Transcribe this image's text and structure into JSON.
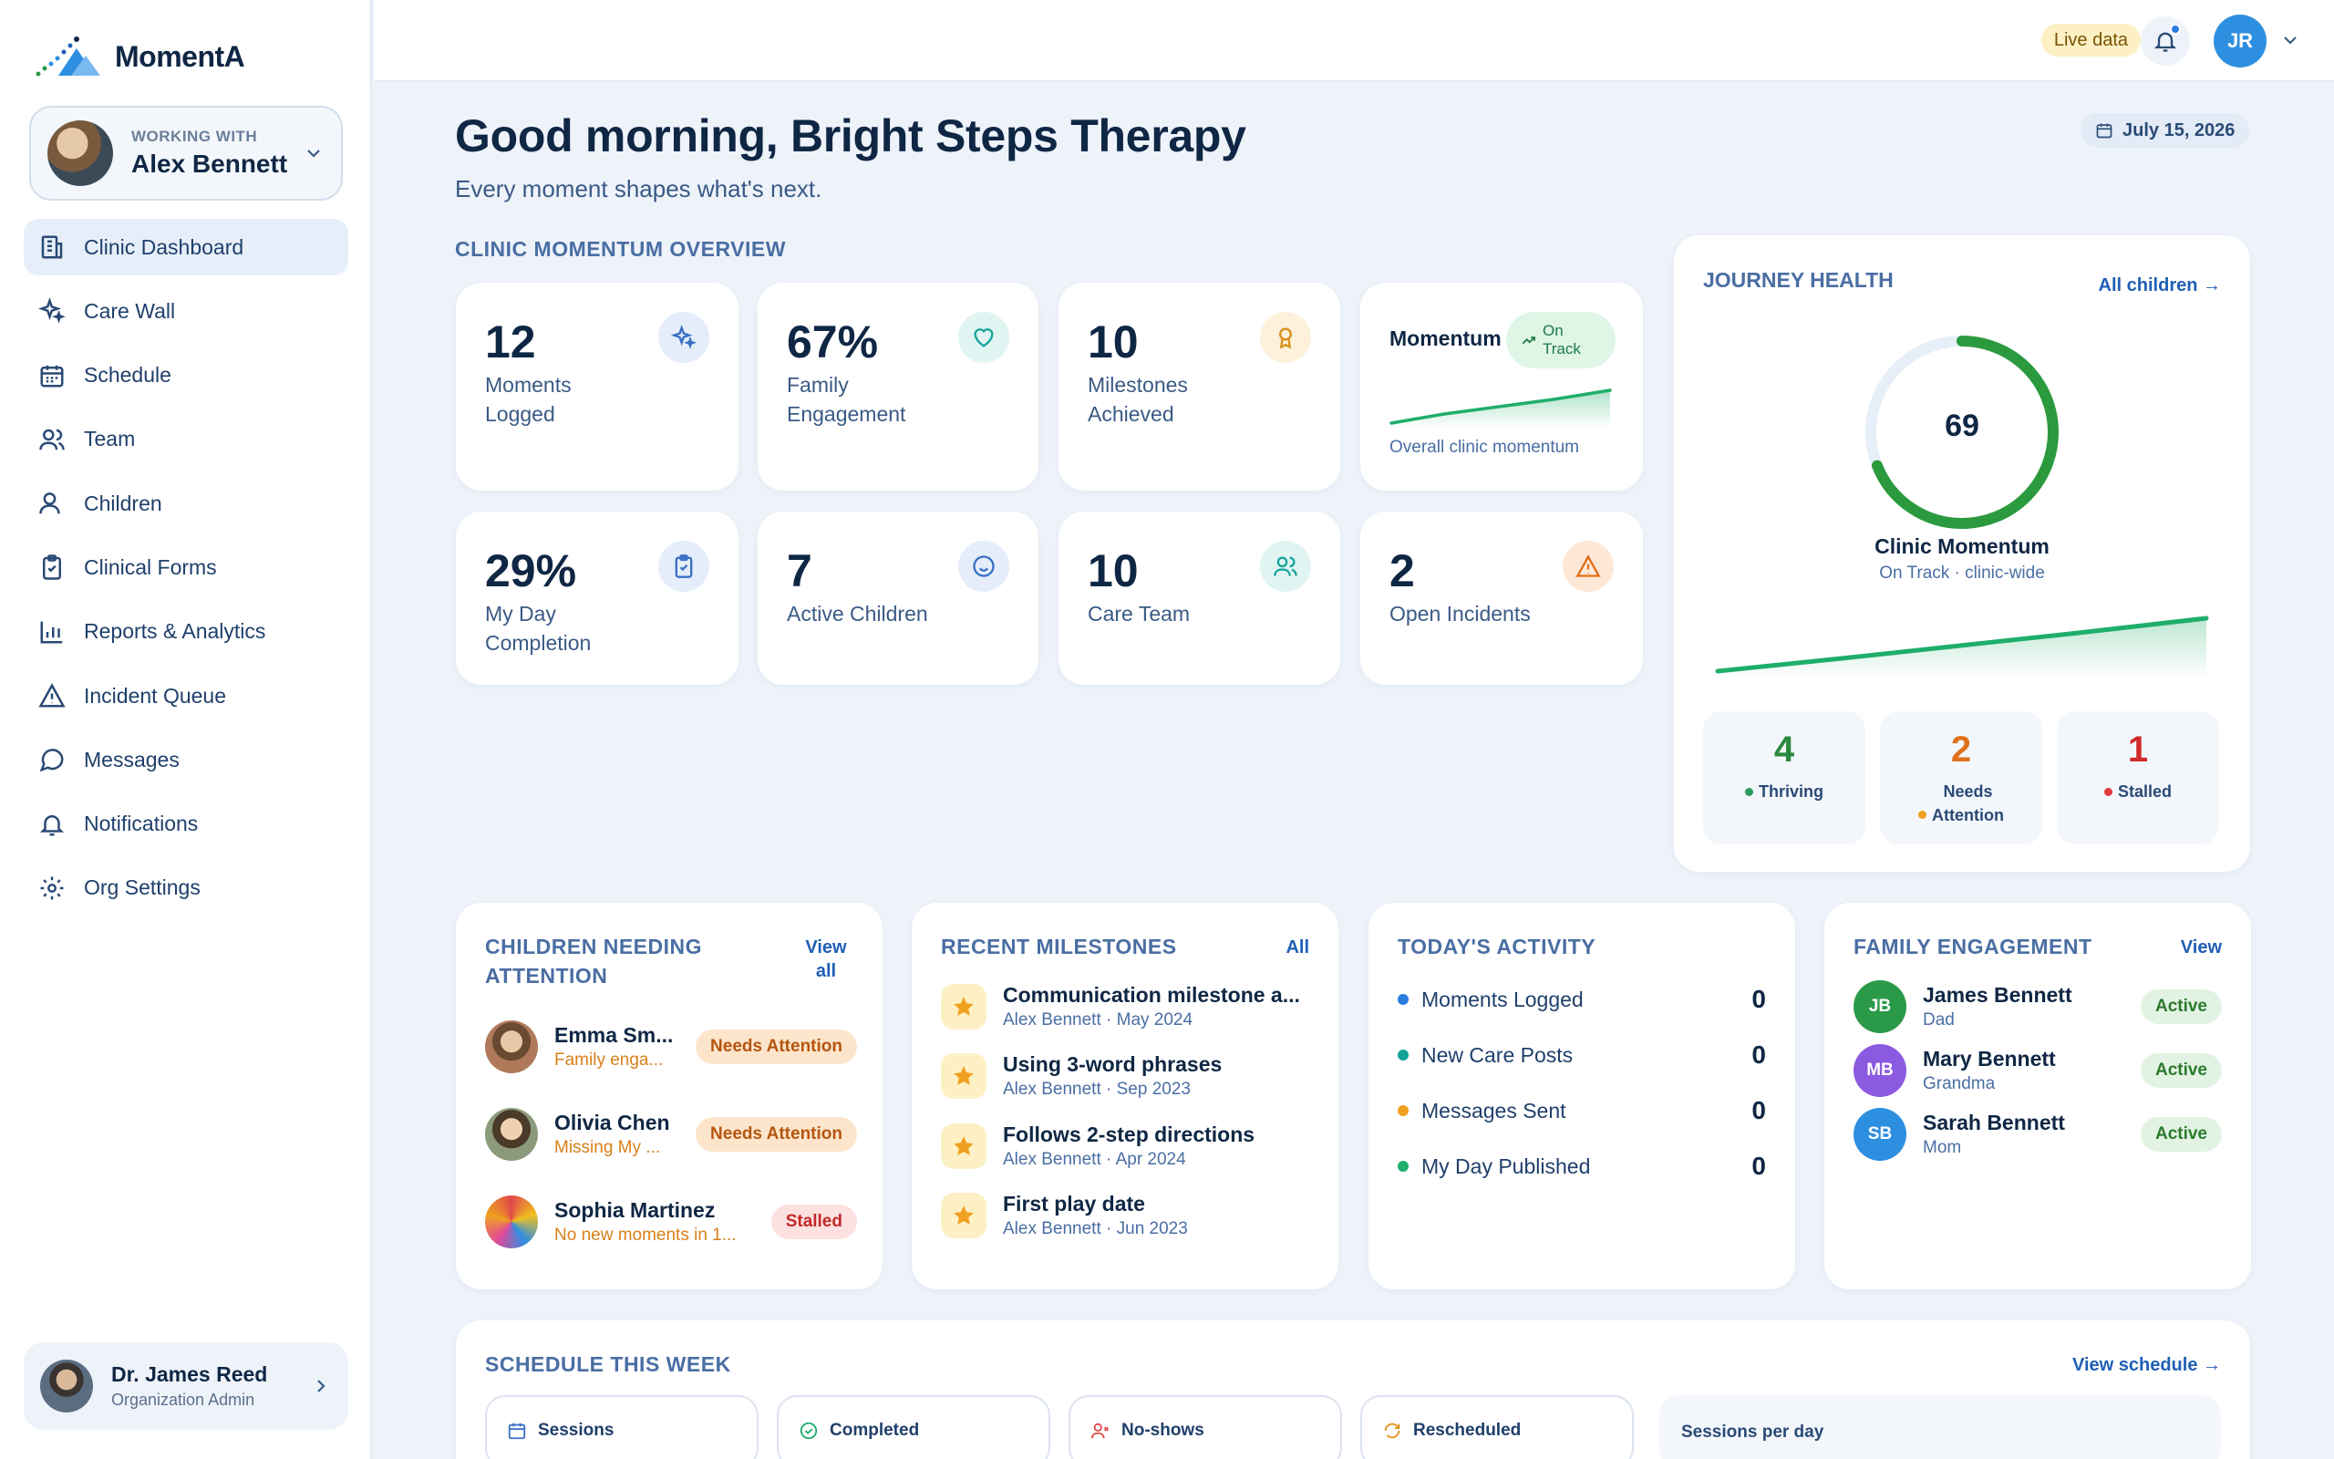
{
  "app": {
    "name": "MomentA"
  },
  "working_with": {
    "label": "WORKING WITH",
    "name": "Alex Bennett"
  },
  "nav": [
    {
      "label": "Clinic Dashboard",
      "icon": "building-icon",
      "active": true
    },
    {
      "label": "Care Wall",
      "icon": "sparkle-icon"
    },
    {
      "label": "Schedule",
      "icon": "calendar-icon"
    },
    {
      "label": "Team",
      "icon": "team-icon"
    },
    {
      "label": "Children",
      "icon": "children-icon"
    },
    {
      "label": "Clinical Forms",
      "icon": "clipboard-icon"
    },
    {
      "label": "Reports & Analytics",
      "icon": "bar-chart-icon"
    },
    {
      "label": "Incident Queue",
      "icon": "warning-icon"
    },
    {
      "label": "Messages",
      "icon": "message-icon"
    },
    {
      "label": "Notifications",
      "icon": "bell-icon"
    },
    {
      "label": "Org Settings",
      "icon": "gear-icon"
    }
  ],
  "profile": {
    "name": "Dr. James Reed",
    "role": "Organization Admin"
  },
  "topbar": {
    "live_label": "Live data",
    "user_initials": "JR"
  },
  "header": {
    "greeting": "Good morning, Bright Steps Therapy",
    "subtitle": "Every moment shapes what's next.",
    "date": "July 15, 2026"
  },
  "overview": {
    "title": "CLINIC MOMENTUM OVERVIEW",
    "stats": [
      {
        "value": "12",
        "label": "Moments Logged",
        "icon": "sparkle-icon",
        "color": "#3a6fc4",
        "bg": "#e4edf9"
      },
      {
        "value": "67%",
        "label": "Family Engagement",
        "icon": "heart-icon",
        "color": "#14a39a",
        "bg": "#e0f5f2"
      },
      {
        "value": "10",
        "label": "Milestones Achieved",
        "icon": "award-icon",
        "color": "#d9901a",
        "bg": "#fdf1dc"
      },
      {
        "value": "29%",
        "label": "My Day Completion",
        "icon": "clipboard-icon",
        "color": "#3a6fc4",
        "bg": "#e4edf9"
      },
      {
        "value": "7",
        "label": "Active Children",
        "icon": "smile-icon",
        "color": "#3a6fc4",
        "bg": "#e4edf9"
      },
      {
        "value": "10",
        "label": "Care Team",
        "icon": "team-icon",
        "color": "#14a39a",
        "bg": "#e0f5f2"
      },
      {
        "value": "2",
        "label": "Open Incidents",
        "icon": "warning-icon",
        "color": "#e0701a",
        "bg": "#fde8d8"
      }
    ],
    "momentum": {
      "title": "Momentum",
      "status": "On Track",
      "caption": "Overall clinic momentum"
    }
  },
  "journey": {
    "title": "JOURNEY HEALTH",
    "link": "All children →",
    "score": "69",
    "score_fraction": 0.69,
    "label": "Clinic Momentum",
    "sub": "On Track · clinic-wide",
    "breakdown": [
      {
        "value": "4",
        "label": "Thriving",
        "color": "#2b8a3e",
        "dot": "#2b9a5e"
      },
      {
        "value": "2",
        "label": "Needs Attention",
        "color": "#e0701a",
        "dot": "#f0a020"
      },
      {
        "value": "1",
        "label": "Stalled",
        "color": "#d12a2a",
        "dot": "#e03a3a"
      }
    ]
  },
  "children_attention": {
    "title": "CHILDREN NEEDING ATTENTION",
    "link": "View all",
    "items": [
      {
        "name": "Emma Sm...",
        "sub": "Family enga...",
        "badge": "Needs Attention",
        "type": "attn"
      },
      {
        "name": "Olivia Chen",
        "sub": "Missing My ...",
        "badge": "Needs Attention",
        "type": "attn"
      },
      {
        "name": "Sophia Martinez",
        "sub": "No new moments in 1...",
        "badge": "Stalled",
        "type": "stall"
      }
    ]
  },
  "milestones": {
    "title": "RECENT MILESTONES",
    "link": "All",
    "items": [
      {
        "name": "Communication milestone a...",
        "sub": "Alex Bennett · May 2024"
      },
      {
        "name": "Using 3-word phrases",
        "sub": "Alex Bennett · Sep 2023"
      },
      {
        "name": "Follows 2-step directions",
        "sub": "Alex Bennett · Apr 2024"
      },
      {
        "name": "First play date",
        "sub": "Alex Bennett · Jun 2023"
      }
    ]
  },
  "activity": {
    "title": "TODAY'S ACTIVITY",
    "items": [
      {
        "label": "Moments Logged",
        "value": "0",
        "color": "#2a7be0"
      },
      {
        "label": "New Care Posts",
        "value": "0",
        "color": "#14a39a"
      },
      {
        "label": "Messages Sent",
        "value": "0",
        "color": "#f0a020"
      },
      {
        "label": "My Day Published",
        "value": "0",
        "color": "#1fae6a"
      }
    ]
  },
  "family": {
    "title": "FAMILY ENGAGEMENT",
    "link": "View",
    "items": [
      {
        "initials": "JB",
        "name": "James Bennett",
        "relation": "Dad",
        "status": "Active",
        "color": "#2b9a48"
      },
      {
        "initials": "MB",
        "name": "Mary Bennett",
        "relation": "Grandma",
        "status": "Active",
        "color": "#8c5ae0"
      },
      {
        "initials": "SB",
        "name": "Sarah Bennett",
        "relation": "Mom",
        "status": "Active",
        "color": "#2d8fe0"
      }
    ]
  },
  "schedule": {
    "title": "SCHEDULE THIS WEEK",
    "link": "View schedule →",
    "chips": [
      {
        "label": "Sessions",
        "icon": "calendar-icon",
        "color": "#3a6fc4"
      },
      {
        "label": "Completed",
        "icon": "check-circle-icon",
        "color": "#1fae6a"
      },
      {
        "label": "No-shows",
        "icon": "user-x-icon",
        "color": "#e04a4a"
      },
      {
        "label": "Rescheduled",
        "icon": "refresh-icon",
        "color": "#e0901a"
      }
    ],
    "per_day_label": "Sessions per day"
  }
}
